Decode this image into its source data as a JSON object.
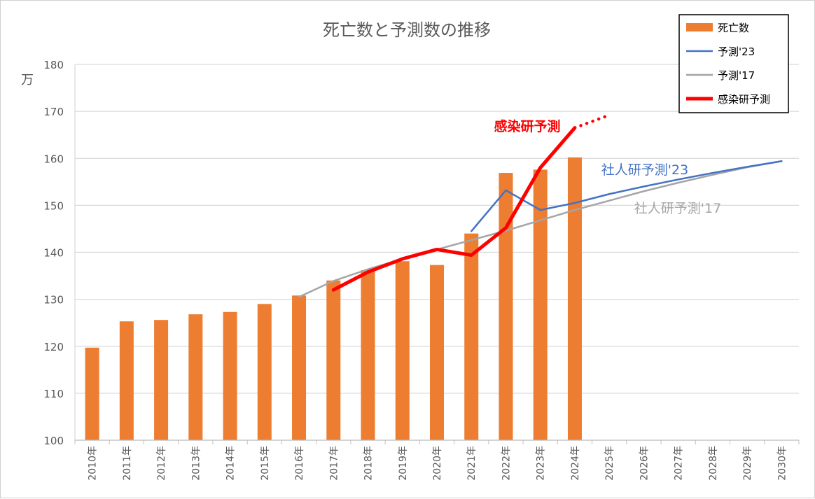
{
  "chart_data": {
    "type": "bar",
    "title": "死亡数と予測数の推移",
    "ylabel": "万",
    "ylim": [
      100,
      180
    ],
    "yticks": [
      100,
      110,
      120,
      130,
      140,
      150,
      160,
      170,
      180
    ],
    "grid": true,
    "legend_position": "top-right",
    "categories": [
      "2010年",
      "2011年",
      "2012年",
      "2013年",
      "2014年",
      "2015年",
      "2016年",
      "2017年",
      "2018年",
      "2019年",
      "2020年",
      "2021年",
      "2022年",
      "2023年",
      "2024年",
      "2025年",
      "2026年",
      "2027年",
      "2028年",
      "2029年",
      "2030年"
    ],
    "series": [
      {
        "name": "死亡数",
        "type": "bar",
        "color": "#ed7d31",
        "values": [
          119.7,
          125.3,
          125.6,
          126.8,
          127.3,
          129.0,
          130.8,
          134.0,
          136.2,
          138.1,
          137.3,
          144.0,
          156.9,
          157.6,
          160.2,
          null,
          null,
          null,
          null,
          null,
          null
        ]
      },
      {
        "name": "予測'23",
        "type": "line",
        "color": "#4472c4",
        "values": [
          null,
          null,
          null,
          null,
          null,
          null,
          null,
          null,
          null,
          null,
          null,
          144.5,
          153.2,
          149.0,
          150.5,
          152.4,
          154.0,
          155.5,
          156.9,
          158.2,
          159.4
        ]
      },
      {
        "name": "予測'17",
        "type": "line",
        "color": "#a5a5a5",
        "values": [
          null,
          null,
          null,
          null,
          null,
          null,
          130.5,
          133.9,
          136.4,
          138.6,
          140.6,
          142.6,
          144.6,
          146.8,
          149.0,
          151.0,
          153.0,
          154.8,
          156.5,
          158.1,
          159.4
        ]
      },
      {
        "name": "感染研予測",
        "type": "line",
        "color": "#ff0000",
        "values": [
          null,
          null,
          null,
          null,
          null,
          null,
          null,
          132.0,
          135.8,
          138.6,
          140.6,
          139.4,
          145.2,
          158.0,
          166.5,
          null,
          null,
          null,
          null,
          null,
          null
        ]
      },
      {
        "name": "感染研予測 (extension)",
        "type": "dotted",
        "color": "#ff0000",
        "values": [
          null,
          null,
          null,
          null,
          null,
          null,
          null,
          null,
          null,
          null,
          null,
          null,
          null,
          null,
          166.5,
          169.2,
          null,
          null,
          null,
          null,
          null
        ]
      }
    ],
    "annotations": [
      {
        "text": "感染研予測",
        "color": "#ff0000",
        "bold": true
      },
      {
        "text": "社人研予測'23",
        "color": "#4472c4",
        "bold": false
      },
      {
        "text": "社人研予測'17",
        "color": "#a5a5a5",
        "bold": false
      }
    ]
  }
}
